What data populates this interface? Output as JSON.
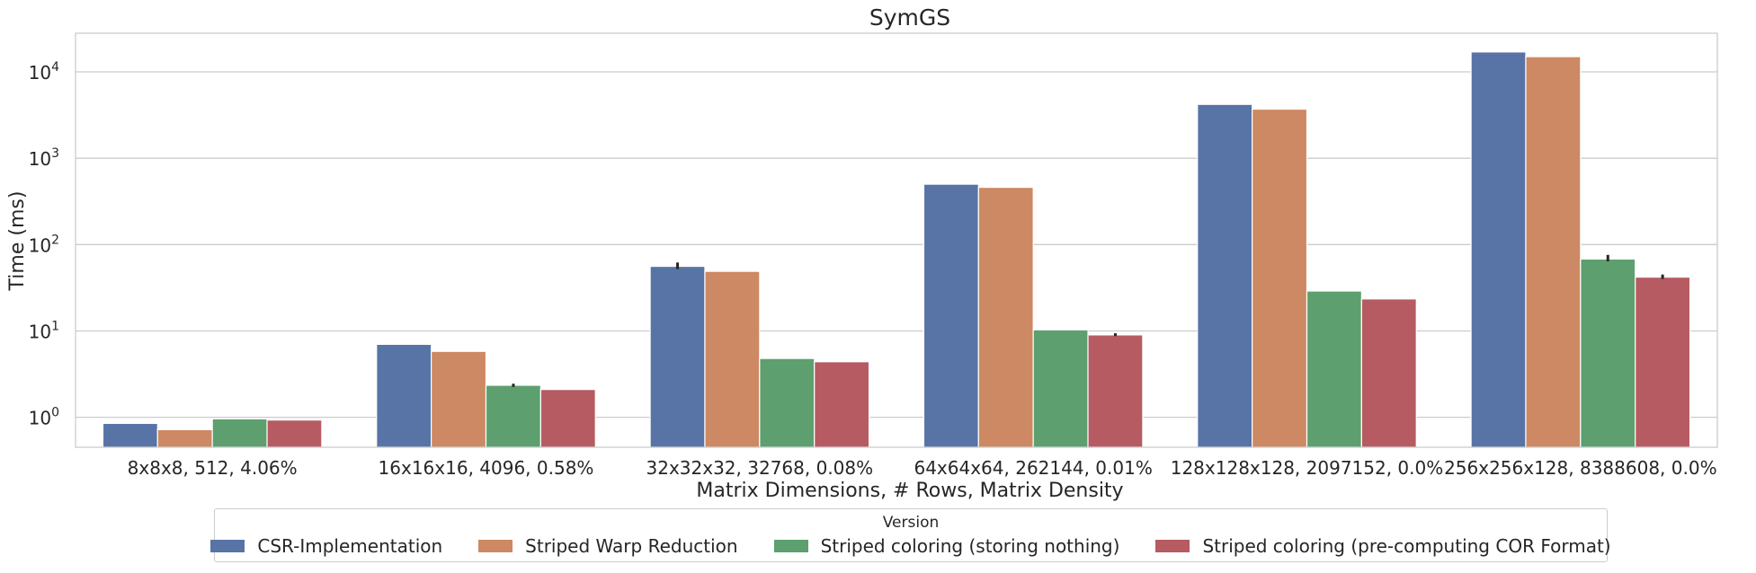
{
  "chart_data": {
    "type": "bar",
    "title": "SymGS",
    "xlabel": "Matrix Dimensions, # Rows, Matrix Density",
    "ylabel": "Time (ms)",
    "yscale": "log",
    "ylim": [
      0.45,
      28000
    ],
    "grid": true,
    "legend_placement": "bottom-center",
    "legend_title": "Version",
    "categories": [
      "8x8x8, 512, 4.06%",
      "16x16x16, 4096, 0.58%",
      "32x32x32, 32768, 0.08%",
      "64x64x64, 262144, 0.01%",
      "128x128x128, 2097152, 0.0%",
      "256x256x128, 8388608, 0.0%"
    ],
    "y_ticks": [
      {
        "value": 1,
        "label": "10",
        "exp": "0"
      },
      {
        "value": 10,
        "label": "10",
        "exp": "1"
      },
      {
        "value": 100,
        "label": "10",
        "exp": "2"
      },
      {
        "value": 1000,
        "label": "10",
        "exp": "3"
      },
      {
        "value": 10000,
        "label": "10",
        "exp": "4"
      }
    ],
    "series": [
      {
        "name": "CSR-Implementation",
        "color": "#5874a6",
        "values": [
          0.85,
          7.0,
          56,
          500,
          4200,
          17000
        ],
        "error_bars": [
          null,
          null,
          [
            52,
            62
          ],
          null,
          null,
          null
        ]
      },
      {
        "name": "Striped Warp Reduction",
        "color": "#cc8963",
        "values": [
          0.72,
          5.8,
          49,
          460,
          3700,
          15000
        ],
        "error_bars": [
          null,
          null,
          null,
          null,
          null,
          null
        ]
      },
      {
        "name": "Striped coloring (storing nothing)",
        "color": "#5d9f6e",
        "values": [
          0.96,
          2.35,
          4.8,
          10.3,
          29,
          68
        ],
        "error_bars": [
          null,
          [
            2.25,
            2.45
          ],
          null,
          null,
          null,
          [
            64,
            76
          ]
        ]
      },
      {
        "name": "Striped coloring (pre-computing COR Format)",
        "color": "#b65b61",
        "values": [
          0.93,
          2.1,
          4.4,
          9.0,
          23.5,
          42
        ],
        "error_bars": [
          null,
          null,
          null,
          [
            8.7,
            9.4
          ],
          null,
          [
            40,
            45
          ]
        ]
      }
    ]
  }
}
